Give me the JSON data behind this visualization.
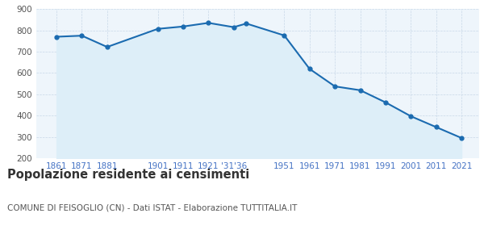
{
  "years": [
    1861,
    1871,
    1881,
    1901,
    1911,
    1921,
    1931,
    1936,
    1951,
    1961,
    1971,
    1981,
    1991,
    2001,
    2011,
    2021
  ],
  "population": [
    770,
    775,
    722,
    807,
    818,
    835,
    815,
    832,
    776,
    619,
    537,
    519,
    462,
    397,
    346,
    295
  ],
  "line_color": "#1b6bb0",
  "marker_color": "#1b6bb0",
  "fill_color": "#ddeef8",
  "bg_color": "#eef5fb",
  "grid_color": "#c8d8e8",
  "title": "Popolazione residente ai censimenti",
  "subtitle": "COMUNE DI FEISOGLIO (CN) - Dati ISTAT - Elaborazione TUTTITALIA.IT",
  "ylim": [
    200,
    900
  ],
  "yticks": [
    200,
    300,
    400,
    500,
    600,
    700,
    800,
    900
  ],
  "background_color": "#ffffff",
  "title_fontsize": 10.5,
  "subtitle_fontsize": 7.5,
  "title_color": "#333333",
  "subtitle_color": "#555555",
  "x_tick_color": "#4472c4",
  "y_tick_color": "#555555",
  "tick_fontsize": 7.5
}
